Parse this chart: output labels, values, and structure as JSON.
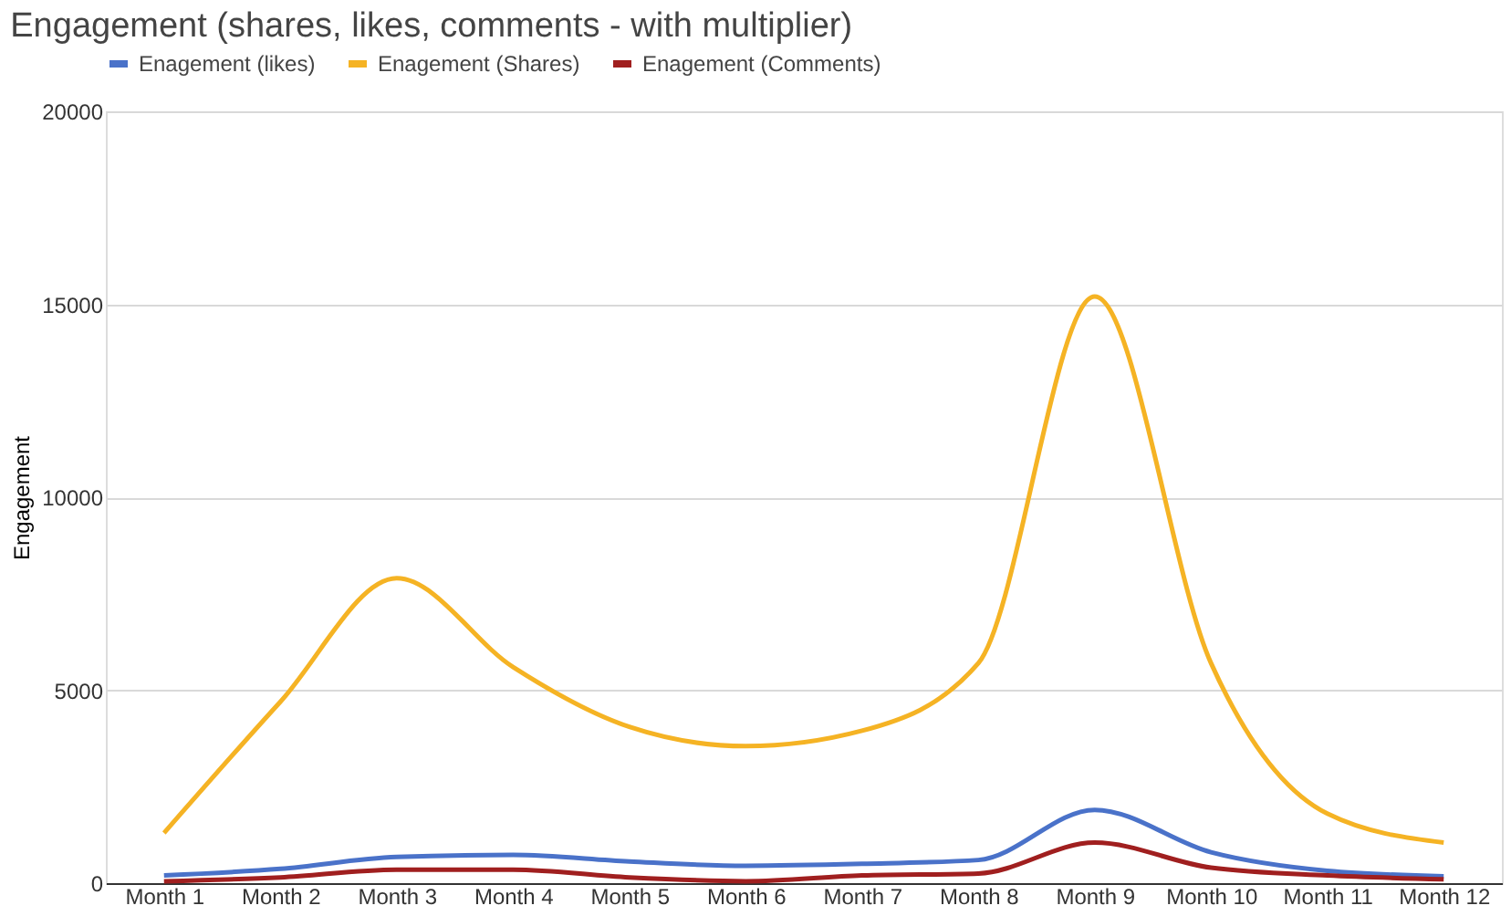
{
  "chart_data": {
    "type": "line",
    "title": "Engagement (shares, likes, comments - with multiplier)",
    "ylabel": "Engagement",
    "categories": [
      "Month 1",
      "Month 2",
      "Month 3",
      "Month 4",
      "Month 5",
      "Month 6",
      "Month 7",
      "Month 8",
      "Month 9",
      "Month 10",
      "Month 11",
      "Month 12"
    ],
    "series": [
      {
        "name": "Enagement (likes)",
        "color": "#4a72c9",
        "values": [
          200,
          370,
          680,
          730,
          560,
          450,
          500,
          600,
          1900,
          800,
          320,
          180
        ]
      },
      {
        "name": "Enagement (Shares)",
        "color": "#f5b324",
        "values": [
          1300,
          4700,
          7900,
          5600,
          4050,
          3550,
          3950,
          5700,
          15200,
          5700,
          1800,
          1050
        ]
      },
      {
        "name": "Enagement (Comments)",
        "color": "#a01f1f",
        "values": [
          50,
          150,
          350,
          350,
          150,
          50,
          200,
          250,
          1050,
          400,
          200,
          100
        ]
      }
    ],
    "ylim": [
      0,
      20000
    ],
    "yticks": [
      0,
      5000,
      10000,
      15000,
      20000
    ],
    "grid": "y",
    "legend": "top",
    "marker": "none",
    "line_style": "solid"
  }
}
